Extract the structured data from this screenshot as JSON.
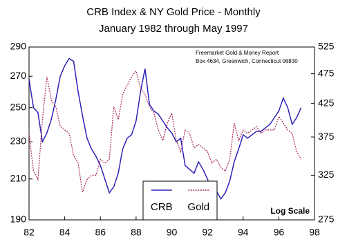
{
  "chart_data": {
    "type": "line",
    "title": "CRB Index & NY Gold Price  - Monthly",
    "subtitle": "January 1982 through May 1997",
    "annotations": [
      "Freemarket Gold & Money Report",
      "Box 4634, Greenwich, Connecticut 06830",
      "Log Scale"
    ],
    "log_scale": true,
    "grid": false,
    "legend": "lower center",
    "x": [
      82,
      82.25,
      82.5,
      82.75,
      83,
      83.25,
      83.5,
      83.75,
      84,
      84.25,
      84.5,
      84.75,
      85,
      85.25,
      85.5,
      85.75,
      86,
      86.25,
      86.5,
      86.75,
      87,
      87.25,
      87.5,
      87.75,
      88,
      88.25,
      88.5,
      88.75,
      89,
      89.25,
      89.5,
      89.75,
      90,
      90.25,
      90.5,
      90.75,
      91,
      91.25,
      91.5,
      91.75,
      92,
      92.25,
      92.5,
      92.75,
      93,
      93.25,
      93.5,
      93.75,
      94,
      94.25,
      94.5,
      94.75,
      95,
      95.25,
      95.5,
      95.75,
      96,
      96.25,
      96.5,
      96.75,
      97,
      97.25
    ],
    "xlim": [
      82,
      98
    ],
    "xticks": [
      82,
      84,
      86,
      88,
      90,
      92,
      94,
      96,
      98
    ],
    "ylim": [
      190,
      290
    ],
    "yticks": [
      190,
      210,
      230,
      250,
      270,
      290
    ],
    "y2lim": [
      275,
      525
    ],
    "y2ticks": [
      275,
      325,
      375,
      425,
      475,
      525
    ],
    "series": [
      {
        "name": "CRB",
        "color": "#2b22b5",
        "values": [
          268,
          250,
          247,
          230,
          235,
          243,
          255,
          270,
          277,
          282,
          280,
          260,
          245,
          232,
          226,
          222,
          217,
          210,
          203,
          206,
          213,
          226,
          232,
          234,
          242,
          260,
          275,
          252,
          248,
          246,
          242,
          238,
          235,
          230,
          232,
          217,
          215,
          213,
          219,
          215,
          210,
          203,
          204,
          200,
          203,
          209,
          219,
          226,
          234,
          232,
          234,
          236,
          236,
          238,
          240,
          244,
          248,
          256,
          250,
          240,
          244,
          250
        ]
      },
      {
        "name": "Gold",
        "color": "#a8245e",
        "axis": "y2",
        "values": [
          380,
          330,
          320,
          400,
          470,
          430,
          420,
          390,
          385,
          380,
          350,
          340,
          305,
          320,
          325,
          325,
          345,
          340,
          345,
          420,
          400,
          440,
          455,
          470,
          480,
          450,
          440,
          420,
          410,
          385,
          370,
          395,
          410,
          370,
          355,
          385,
          380,
          360,
          365,
          360,
          355,
          340,
          345,
          335,
          330,
          345,
          395,
          370,
          385,
          380,
          385,
          390,
          380,
          385,
          385,
          385,
          405,
          395,
          385,
          380,
          355,
          345
        ]
      }
    ]
  }
}
